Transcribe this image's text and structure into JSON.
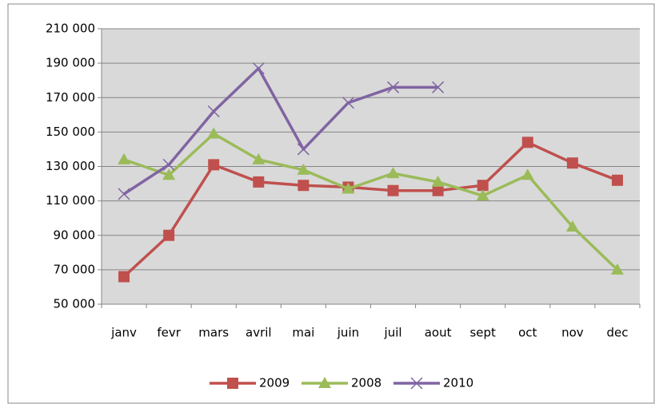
{
  "chart_data": {
    "type": "line",
    "categories": [
      "janv",
      "fevr",
      "mars",
      "avril",
      "mai",
      "juin",
      "juil",
      "aout",
      "sept",
      "oct",
      "nov",
      "dec"
    ],
    "series": [
      {
        "name": "2009",
        "color": "#c0504d",
        "marker": "square",
        "values": [
          66000,
          90000,
          131000,
          121000,
          119000,
          118000,
          116000,
          116000,
          119000,
          144000,
          132000,
          122000
        ]
      },
      {
        "name": "2008",
        "color": "#9bbb59",
        "marker": "triangle",
        "values": [
          134000,
          125000,
          149000,
          134000,
          128000,
          117000,
          126000,
          121000,
          113000,
          125000,
          95000,
          70000
        ]
      },
      {
        "name": "2010",
        "color": "#8064a2",
        "marker": "x",
        "values": [
          114000,
          131000,
          162000,
          187000,
          140000,
          167000,
          176000,
          176000,
          null,
          null,
          null,
          null
        ]
      }
    ],
    "ylim": [
      50000,
      210000
    ],
    "yticks": [
      {
        "value": 50000,
        "label": "50 000"
      },
      {
        "value": 70000,
        "label": "70 000"
      },
      {
        "value": 90000,
        "label": "90 000"
      },
      {
        "value": 110000,
        "label": "110 000"
      },
      {
        "value": 130000,
        "label": "130 000"
      },
      {
        "value": 150000,
        "label": "150 000"
      },
      {
        "value": 170000,
        "label": "170 000"
      },
      {
        "value": 190000,
        "label": "190 000"
      },
      {
        "value": 210000,
        "label": "210 000"
      }
    ],
    "grid": true,
    "legend": "bottom"
  }
}
